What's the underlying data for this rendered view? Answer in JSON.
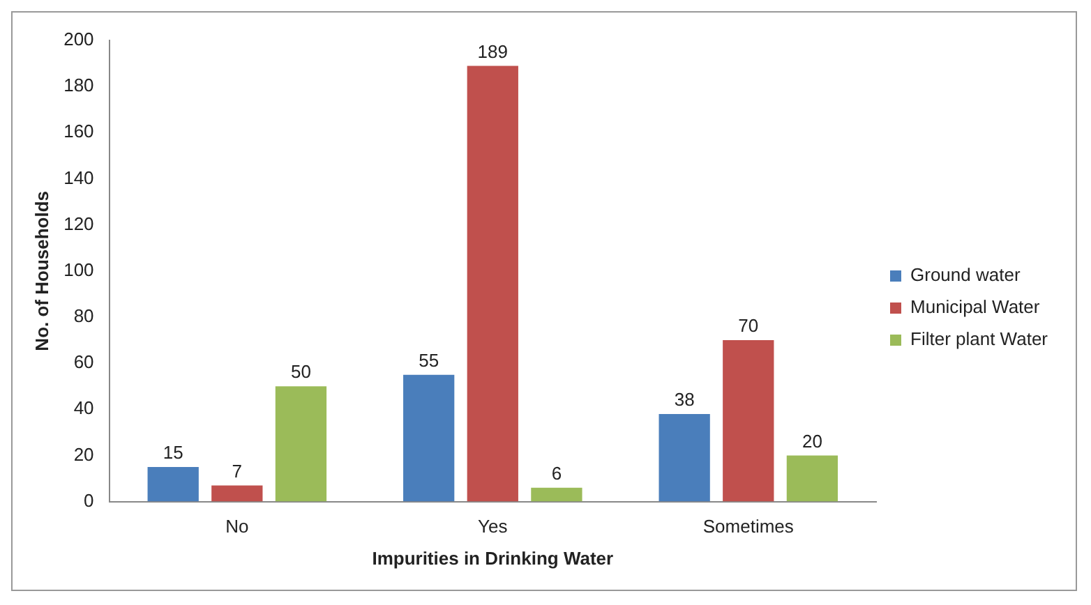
{
  "chart_data": {
    "type": "bar",
    "xlabel": "Impurities in Drinking Water",
    "ylabel": "No. of Households",
    "categories": [
      "No",
      "Yes",
      "Sometimes"
    ],
    "series": [
      {
        "name": "Ground water",
        "color": "#4a7ebb",
        "values": [
          15,
          55,
          38
        ]
      },
      {
        "name": "Municipal Water",
        "color": "#c0504d",
        "values": [
          7,
          189,
          70
        ]
      },
      {
        "name": "Filter plant Water",
        "color": "#9bbb59",
        "values": [
          50,
          6,
          20
        ]
      }
    ],
    "ylim": [
      0,
      200
    ],
    "yticks": [
      0,
      20,
      40,
      60,
      80,
      100,
      120,
      140,
      160,
      180,
      200
    ],
    "grid": false,
    "legend": "right",
    "data_labels": true
  }
}
